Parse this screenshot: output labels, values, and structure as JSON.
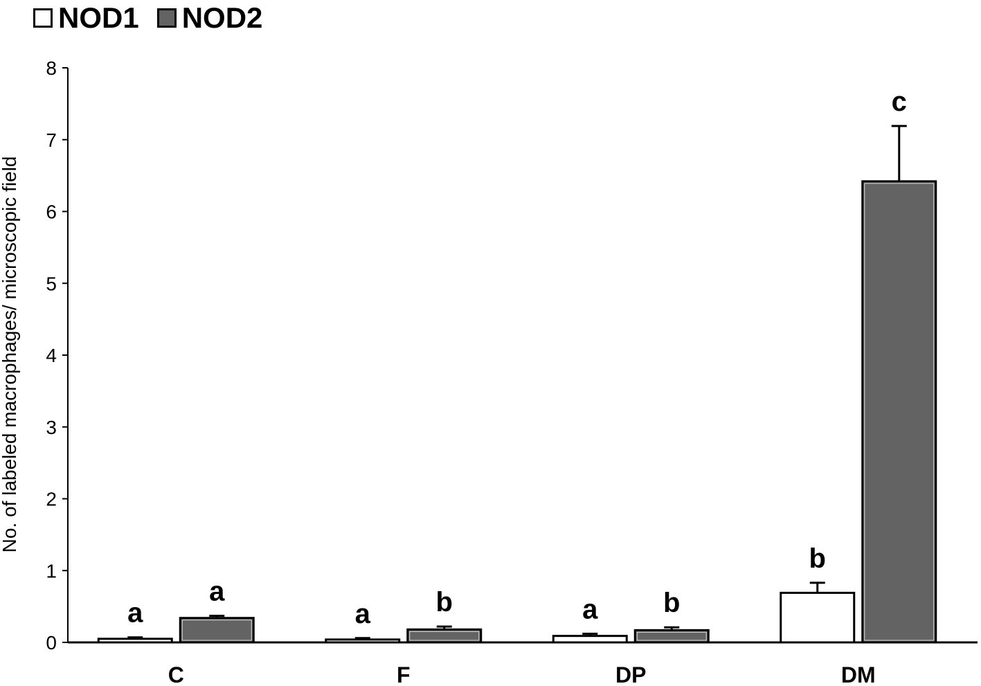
{
  "chart_data": {
    "type": "bar",
    "categories": [
      "C",
      "F",
      "DP",
      "DM"
    ],
    "series": [
      {
        "name": "NOD1",
        "color": "#ffffff",
        "values": [
          0.05,
          0.04,
          0.09,
          0.69
        ],
        "errors": [
          0.02,
          0.02,
          0.03,
          0.14
        ],
        "letters": [
          "a",
          "a",
          "a",
          "b"
        ]
      },
      {
        "name": "NOD2",
        "color": "#636363",
        "values": [
          0.34,
          0.18,
          0.17,
          6.42
        ],
        "errors": [
          0.03,
          0.04,
          0.04,
          0.77
        ],
        "letters": [
          "a",
          "b",
          "b",
          "c"
        ]
      }
    ],
    "ylabel": "No. of labeled macrophages/ microscopic field",
    "xlabel": "",
    "ylim": [
      0,
      8
    ],
    "yticks": [
      0,
      1,
      2,
      3,
      4,
      5,
      6,
      7,
      8
    ],
    "grid": false,
    "legend_position": "top-left"
  }
}
